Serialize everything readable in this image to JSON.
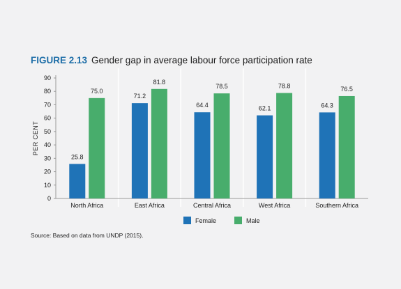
{
  "figure": {
    "label": "FIGURE 2.13",
    "title": "Gender gap in average labour force participation rate",
    "source": "Source: Based on data from UNDP (2015)."
  },
  "colors": {
    "female": "#1f73b7",
    "male": "#48ad6c",
    "grid": "#ffffff",
    "axis": "#999999"
  },
  "chart_data": {
    "type": "bar",
    "title": "Gender gap in average labour force participation rate",
    "ylabel": "PER CENT",
    "xlabel": "",
    "ylim": [
      0,
      90
    ],
    "yticks": [
      0,
      10,
      20,
      30,
      40,
      50,
      60,
      70,
      80,
      90
    ],
    "categories": [
      "North Africa",
      "East Africa",
      "Central Africa",
      "West Africa",
      "Southern Africa"
    ],
    "series": [
      {
        "name": "Female",
        "values": [
          25.8,
          71.2,
          64.4,
          62.1,
          64.3
        ],
        "labels": [
          "25.8",
          "71.2",
          "64.4",
          "62.1",
          "64.3"
        ]
      },
      {
        "name": "Male",
        "values": [
          75.0,
          81.8,
          78.5,
          78.8,
          76.5
        ],
        "labels": [
          "75.0",
          "81.8",
          "78.5",
          "78.8",
          "76.5"
        ]
      }
    ],
    "legend_position": "bottom-center",
    "grid": false
  }
}
